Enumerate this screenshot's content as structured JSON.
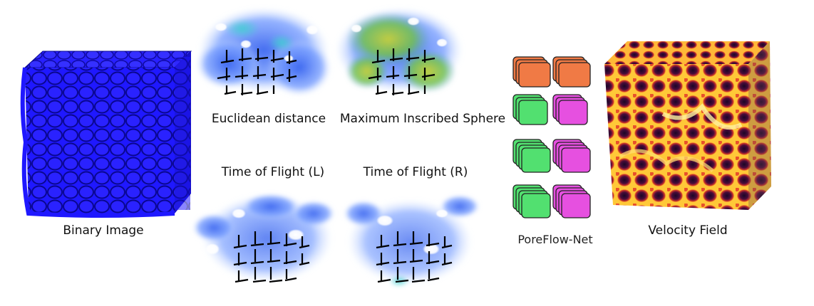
{
  "labels": {
    "binary_image": "Binary Image",
    "euclidean_distance": "Euclidean distance",
    "max_inscribed_sphere": "Maximum Inscribed Sphere",
    "time_of_flight_l": "Time of Flight  (L)",
    "time_of_flight_r": "Time of Flight  (R)",
    "poreflow_net": "PoreFlow-Net",
    "velocity_field": "Velocity Field"
  },
  "colors": {
    "binary_blue": "#1a14f0",
    "binary_dark": "#0b0890",
    "field_blue": "#4d7cf2",
    "field_light": "#9fb8ff",
    "field_cyan": "#3fc8d8",
    "msph_green": "#8fc840",
    "msph_yellow": "#e0d030",
    "velocity_dark": "#2a0a3a",
    "velocity_mid": "#d8382a",
    "velocity_bright": "#ffd040",
    "net_orange": "#f07a45",
    "net_green": "#52e070",
    "net_magenta": "#e650e0"
  },
  "icons": [
    "binary-porous-cube",
    "euclidean-distance-field",
    "max-inscribed-sphere-field",
    "time-of-flight-left-field",
    "time-of-flight-right-field",
    "network-layer-stacks",
    "velocity-field-cube"
  ]
}
